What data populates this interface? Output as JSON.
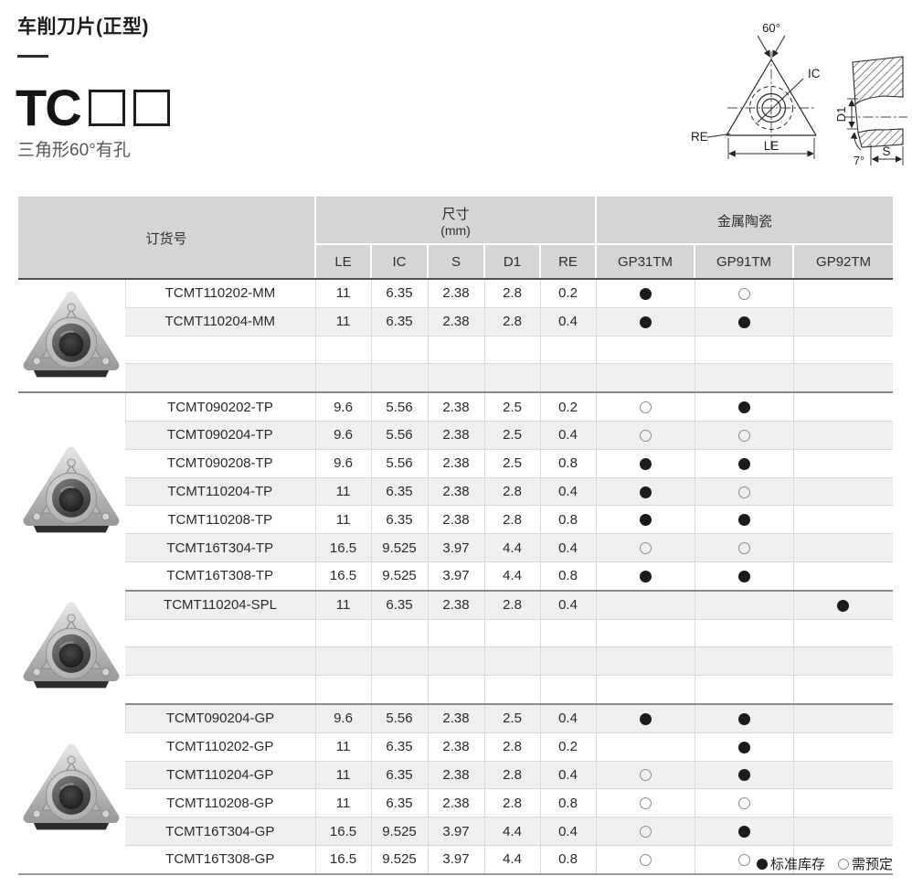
{
  "page": {
    "title": "车削刀片(正型)",
    "series_code": "TC",
    "series_desc": "三角形60°有孔"
  },
  "diagram": {
    "labels": {
      "angle": "60°",
      "ic": "IC",
      "re": "RE",
      "le": "LE",
      "d1": "D1",
      "taper": "7°",
      "s": "S"
    }
  },
  "table": {
    "header": {
      "order_col": "订货号",
      "dims_group": "尺寸",
      "dims_unit": "(mm)",
      "dim_cols": [
        "LE",
        "IC",
        "S",
        "D1",
        "RE"
      ],
      "material_group": "金属陶瓷",
      "material_cols": [
        "GP31TM",
        "GP91TM",
        "GP92TM"
      ]
    },
    "groups": [
      {
        "photo": "tcmt-mm",
        "rows": [
          {
            "order": "TCMT110202-MM",
            "dims": [
              "11",
              "6.35",
              "2.38",
              "2.8",
              "0.2"
            ],
            "marks": [
              "filled",
              "open",
              ""
            ]
          },
          {
            "order": "TCMT110204-MM",
            "dims": [
              "11",
              "6.35",
              "2.38",
              "2.8",
              "0.4"
            ],
            "marks": [
              "filled",
              "filled",
              ""
            ]
          },
          {
            "order": "",
            "dims": [
              "",
              "",
              "",
              "",
              ""
            ],
            "marks": [
              "",
              "",
              ""
            ]
          },
          {
            "order": "",
            "dims": [
              "",
              "",
              "",
              "",
              ""
            ],
            "marks": [
              "",
              "",
              ""
            ]
          }
        ]
      },
      {
        "photo": "tcmt-tp",
        "rows": [
          {
            "order": "TCMT090202-TP",
            "dims": [
              "9.6",
              "5.56",
              "2.38",
              "2.5",
              "0.2"
            ],
            "marks": [
              "open",
              "filled",
              ""
            ]
          },
          {
            "order": "TCMT090204-TP",
            "dims": [
              "9.6",
              "5.56",
              "2.38",
              "2.5",
              "0.4"
            ],
            "marks": [
              "open",
              "open",
              ""
            ]
          },
          {
            "order": "TCMT090208-TP",
            "dims": [
              "9.6",
              "5.56",
              "2.38",
              "2.5",
              "0.8"
            ],
            "marks": [
              "filled",
              "filled",
              ""
            ]
          },
          {
            "order": "TCMT110204-TP",
            "dims": [
              "11",
              "6.35",
              "2.38",
              "2.8",
              "0.4"
            ],
            "marks": [
              "filled",
              "open",
              ""
            ]
          },
          {
            "order": "TCMT110208-TP",
            "dims": [
              "11",
              "6.35",
              "2.38",
              "2.8",
              "0.8"
            ],
            "marks": [
              "filled",
              "filled",
              ""
            ]
          },
          {
            "order": "TCMT16T304-TP",
            "dims": [
              "16.5",
              "9.525",
              "3.97",
              "4.4",
              "0.4"
            ],
            "marks": [
              "open",
              "open",
              ""
            ]
          },
          {
            "order": "TCMT16T308-TP",
            "dims": [
              "16.5",
              "9.525",
              "3.97",
              "4.4",
              "0.8"
            ],
            "marks": [
              "filled",
              "filled",
              ""
            ]
          }
        ]
      },
      {
        "photo": "tcmt-spl",
        "rows": [
          {
            "order": "TCMT110204-SPL",
            "dims": [
              "11",
              "6.35",
              "2.38",
              "2.8",
              "0.4"
            ],
            "marks": [
              "",
              "",
              "filled"
            ]
          },
          {
            "order": "",
            "dims": [
              "",
              "",
              "",
              "",
              ""
            ],
            "marks": [
              "",
              "",
              ""
            ]
          },
          {
            "order": "",
            "dims": [
              "",
              "",
              "",
              "",
              ""
            ],
            "marks": [
              "",
              "",
              ""
            ]
          },
          {
            "order": "",
            "dims": [
              "",
              "",
              "",
              "",
              ""
            ],
            "marks": [
              "",
              "",
              ""
            ]
          }
        ]
      },
      {
        "photo": "tcmt-gp",
        "rows": [
          {
            "order": "TCMT090204-GP",
            "dims": [
              "9.6",
              "5.56",
              "2.38",
              "2.5",
              "0.4"
            ],
            "marks": [
              "filled",
              "filled",
              ""
            ]
          },
          {
            "order": "TCMT110202-GP",
            "dims": [
              "11",
              "6.35",
              "2.38",
              "2.8",
              "0.2"
            ],
            "marks": [
              "",
              "filled",
              ""
            ]
          },
          {
            "order": "TCMT110204-GP",
            "dims": [
              "11",
              "6.35",
              "2.38",
              "2.8",
              "0.4"
            ],
            "marks": [
              "open",
              "filled",
              ""
            ]
          },
          {
            "order": "TCMT110208-GP",
            "dims": [
              "11",
              "6.35",
              "2.38",
              "2.8",
              "0.8"
            ],
            "marks": [
              "open",
              "open",
              ""
            ]
          },
          {
            "order": "TCMT16T304-GP",
            "dims": [
              "16.5",
              "9.525",
              "3.97",
              "4.4",
              "0.4"
            ],
            "marks": [
              "open",
              "filled",
              ""
            ]
          },
          {
            "order": "TCMT16T308-GP",
            "dims": [
              "16.5",
              "9.525",
              "3.97",
              "4.4",
              "0.8"
            ],
            "marks": [
              "open",
              "open",
              ""
            ]
          }
        ]
      }
    ]
  },
  "legend": {
    "filled_label": "标准库存",
    "open_label": "需预定"
  }
}
